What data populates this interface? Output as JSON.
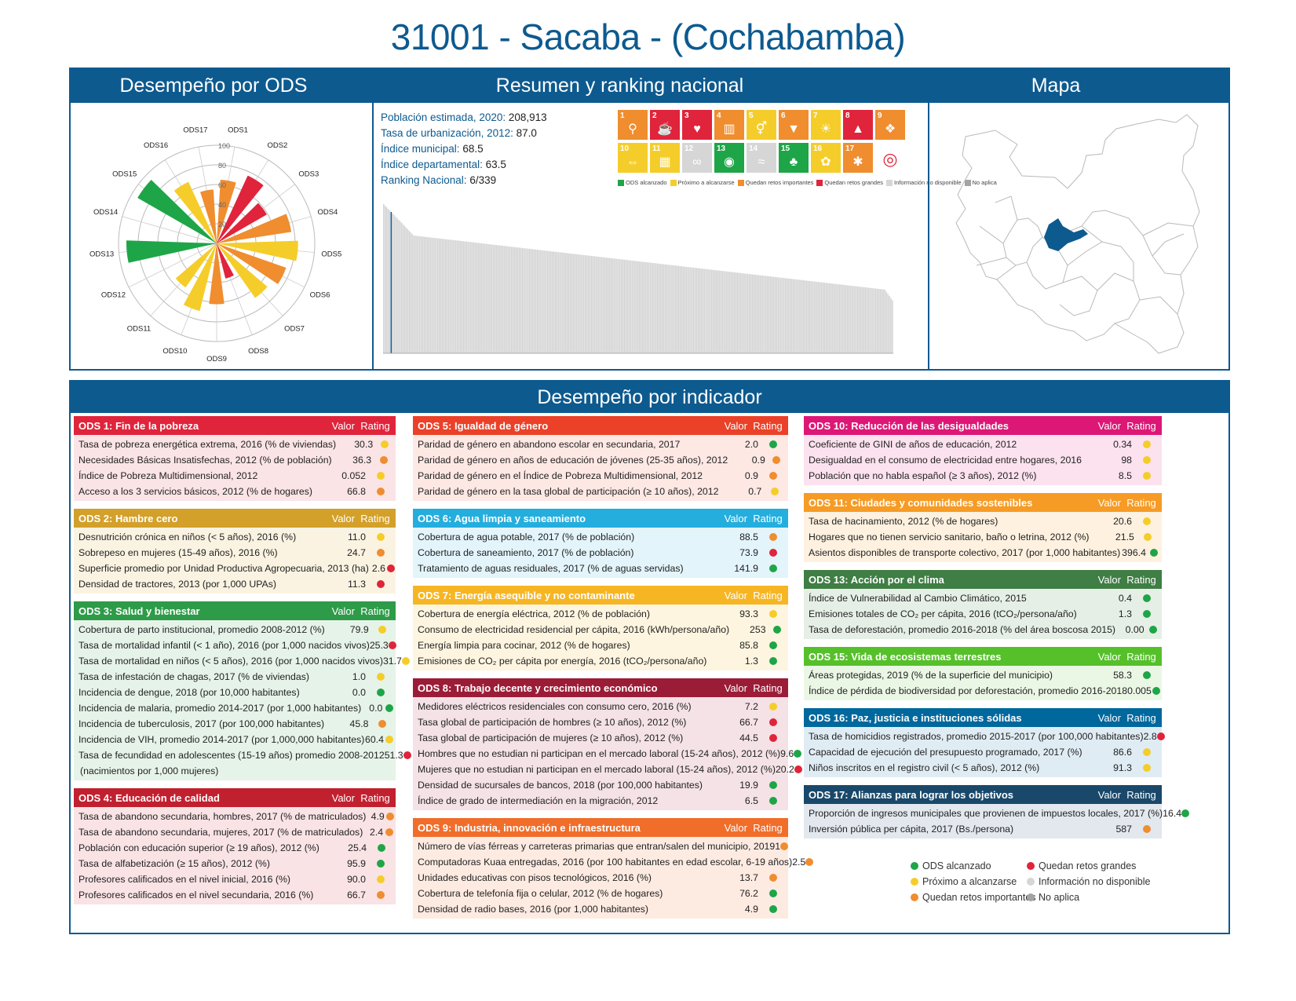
{
  "title": "31001 - Sacaba - (Cochabamba)",
  "top_headers": {
    "performance": "Desempeño por ODS",
    "summary": "Resumen y ranking nacional",
    "map": "Mapa"
  },
  "bottom_header": "Desempeño por indicador",
  "colors": {
    "brand": "#0d5a8f",
    "green": "#1ea548",
    "yellow": "#f5cd2a",
    "orange": "#ef8d2f",
    "red": "#e0243b",
    "lightgray": "#d6d6d6",
    "gray": "#a3a3a3"
  },
  "summary": {
    "rows": [
      {
        "label": "Población estimada, 2020:",
        "value": "208,913"
      },
      {
        "label": "Tasa de urbanización, 2012:",
        "value": "87.0"
      },
      {
        "label": "Índice municipal:",
        "value": "68.5"
      },
      {
        "label": "Índice departamental:",
        "value": "63.5"
      },
      {
        "label": "Ranking Nacional:",
        "value": "6/339"
      }
    ],
    "legend": [
      {
        "label": "ODS alcanzado",
        "color": "#1ea548"
      },
      {
        "label": "Próximo a alcanzarse",
        "color": "#f5cd2a"
      },
      {
        "label": "Quedan retos importantes",
        "color": "#ef8d2f"
      },
      {
        "label": "Quedan retos grandes",
        "color": "#e0243b"
      },
      {
        "label": "Información no disponible",
        "color": "#d6d6d6"
      },
      {
        "label": "No aplica",
        "color": "#a3a3a3"
      }
    ],
    "sdg_tiles": [
      {
        "num": "1",
        "color": "#ef8d2f",
        "glyph": "⚲"
      },
      {
        "num": "2",
        "color": "#e0243b",
        "glyph": "☕"
      },
      {
        "num": "3",
        "color": "#e0243b",
        "glyph": "♥"
      },
      {
        "num": "4",
        "color": "#ef8d2f",
        "glyph": "▥"
      },
      {
        "num": "5",
        "color": "#f5cd2a",
        "glyph": "⚥"
      },
      {
        "num": "6",
        "color": "#ef8d2f",
        "glyph": "▼"
      },
      {
        "num": "7",
        "color": "#f5cd2a",
        "glyph": "☀"
      },
      {
        "num": "8",
        "color": "#e0243b",
        "glyph": "▲"
      },
      {
        "num": "9",
        "color": "#ef8d2f",
        "glyph": "❖"
      },
      {
        "num": "10",
        "color": "#f5cd2a",
        "glyph": "⇔"
      },
      {
        "num": "11",
        "color": "#f5cd2a",
        "glyph": "▦"
      },
      {
        "num": "12",
        "color": "#d6d6d6",
        "glyph": "∞"
      },
      {
        "num": "13",
        "color": "#1ea548",
        "glyph": "◉"
      },
      {
        "num": "14",
        "color": "#d6d6d6",
        "glyph": "≈"
      },
      {
        "num": "15",
        "color": "#1ea548",
        "glyph": "♣"
      },
      {
        "num": "16",
        "color": "#f5cd2a",
        "glyph": "✿"
      },
      {
        "num": "17",
        "color": "#ef8d2f",
        "glyph": "✱"
      },
      {
        "num": "",
        "color": "#ffffff",
        "glyph": "◎"
      }
    ],
    "ranking_bar_values_note": "",
    "ranking_highlight_index": 5
  },
  "chart_data": [
    {
      "type": "polar-bar",
      "title": "",
      "categories": [
        "ODS1",
        "ODS2",
        "ODS3",
        "ODS4",
        "ODS5",
        "ODS6",
        "ODS7",
        "ODS8",
        "ODS9",
        "ODS10",
        "ODS11",
        "ODS12",
        "ODS13",
        "ODS15",
        "ODS16",
        "ODS17"
      ],
      "values": [
        65,
        76,
        59,
        77,
        83,
        75,
        68,
        37,
        62,
        71,
        55,
        0,
        92,
        93,
        69,
        55
      ],
      "colors": [
        "#ef8d2f",
        "#e0243b",
        "#e0243b",
        "#ef8d2f",
        "#f5cd2a",
        "#ef8d2f",
        "#f5cd2a",
        "#e0243b",
        "#ef8d2f",
        "#f5cd2a",
        "#f5cd2a",
        "#d6d6d6",
        "#1ea548",
        "#1ea548",
        "#f5cd2a",
        "#ef8d2f"
      ],
      "radial_ticks": [
        "20",
        "40",
        "60",
        "80",
        "100"
      ],
      "rlim": [
        0,
        100
      ]
    },
    {
      "type": "bar",
      "title": "",
      "count": 339,
      "highlight_rank": 6
    }
  ],
  "sections": {
    "col1": [
      {
        "title": "ODS 1: Fin de la pobreza",
        "color": "#e0243b",
        "bg": "#fbe4e6",
        "items": [
          {
            "name": "Tasa de pobreza energética extrema, 2016 (% de viviendas)",
            "value": "30.3",
            "rating": "#f5cd2a"
          },
          {
            "name": "Necesidades Básicas Insatisfechas, 2012 (% de población)",
            "value": "36.3",
            "rating": "#ef8d2f"
          },
          {
            "name": "Índice de Pobreza Multidimensional, 2012",
            "value": "0.052",
            "rating": "#f5cd2a"
          },
          {
            "name": "Acceso a los 3 servicios básicos, 2012 (% de hogares)",
            "value": "66.8",
            "rating": "#ef8d2f"
          }
        ]
      },
      {
        "title": "ODS 2: Hambre cero",
        "color": "#d3a029",
        "bg": "#fbf3e2",
        "items": [
          {
            "name": "Desnutrición crónica en niños (< 5 años), 2016 (%)",
            "value": "11.0",
            "rating": "#f5cd2a"
          },
          {
            "name": "Sobrepeso en mujeres (15-49 años), 2016 (%)",
            "value": "24.7",
            "rating": "#ef8d2f"
          },
          {
            "name": "Superficie promedio por Unidad Productiva Agropecuaria, 2013 (ha)",
            "value": "2.6",
            "rating": "#e0243b"
          },
          {
            "name": "Densidad de tractores, 2013 (por 1,000 UPAs)",
            "value": "11.3",
            "rating": "#e0243b"
          }
        ]
      },
      {
        "title": "ODS 3: Salud y bienestar",
        "color": "#2e9b48",
        "bg": "#e6f3e9",
        "items": [
          {
            "name": "Cobertura de parto institucional, promedio 2008-2012 (%)",
            "value": "79.9",
            "rating": "#f5cd2a"
          },
          {
            "name": "Tasa de mortalidad infantil (< 1 año), 2016 (por 1,000 nacidos vivos)",
            "value": "25.3",
            "rating": "#e0243b"
          },
          {
            "name": "Tasa de mortalidad en niños (< 5 años), 2016 (por 1,000 nacidos vivos)",
            "value": "31.7",
            "rating": "#f5cd2a"
          },
          {
            "name": "Tasa de infestación de chagas, 2017 (% de viviendas)",
            "value": "1.0",
            "rating": "#f5cd2a"
          },
          {
            "name": "Incidencia de dengue, 2018 (por 10,000 habitantes)",
            "value": "0.0",
            "rating": "#1ea548"
          },
          {
            "name": "Incidencia de malaria, promedio 2014-2017 (por 1,000 habitantes)",
            "value": "0.0",
            "rating": "#1ea548"
          },
          {
            "name": "Incidencia de tuberculosis, 2017 (por 100,000 habitantes)",
            "value": "45.8",
            "rating": "#ef8d2f"
          },
          {
            "name": "Incidencia de VIH, promedio 2014-2017 (por 1,000,000 habitantes)",
            "value": "60.4",
            "rating": "#f5cd2a"
          },
          {
            "name": "Tasa de fecundidad en adolescentes (15-19 años) promedio 2008-2012",
            "value": "51.3",
            "rating": "#e0243b"
          },
          {
            "name": "(nacimientos por 1,000 mujeres)",
            "value": "",
            "rating": ""
          }
        ]
      },
      {
        "title": "ODS 4: Educación de calidad",
        "color": "#c1202f",
        "bg": "#f9e3e5",
        "items": [
          {
            "name": "Tasa de abandono secundaria, hombres, 2017 (% de matriculados)",
            "value": "4.9",
            "rating": "#ef8d2f"
          },
          {
            "name": "Tasa de abandono secundaria, mujeres, 2017 (% de matriculados)",
            "value": "2.4",
            "rating": "#ef8d2f"
          },
          {
            "name": "Población con educación superior (≥ 19 años), 2012 (%)",
            "value": "25.4",
            "rating": "#1ea548"
          },
          {
            "name": "Tasa de alfabetización (≥ 15 años), 2012 (%)",
            "value": "95.9",
            "rating": "#1ea548"
          },
          {
            "name": "Profesores calificados en el nivel inicial, 2016 (%)",
            "value": "90.0",
            "rating": "#f5cd2a"
          },
          {
            "name": "Profesores calificados en el nivel secundaria, 2016 (%)",
            "value": "66.7",
            "rating": "#ef8d2f"
          }
        ]
      }
    ],
    "col2": [
      {
        "title": "ODS 5: Igualdad de género",
        "color": "#ea4128",
        "bg": "#fde8e4",
        "items": [
          {
            "name": "Paridad de género en abandono escolar en secundaria, 2017",
            "value": "2.0",
            "rating": "#1ea548"
          },
          {
            "name": "Paridad de género en años de educación de jóvenes (25-35 años), 2012",
            "value": "0.9",
            "rating": "#ef8d2f"
          },
          {
            "name": "Paridad de género en el Índice de Pobreza Multidimensional, 2012",
            "value": "0.9",
            "rating": "#ef8d2f"
          },
          {
            "name": "Paridad de género en la tasa global de participación (≥ 10 años), 2012",
            "value": "0.7",
            "rating": "#f5cd2a"
          }
        ]
      },
      {
        "title": "ODS 6: Agua limpia y saneamiento",
        "color": "#24aede",
        "bg": "#e3f4fb",
        "items": [
          {
            "name": "Cobertura de agua potable, 2017 (% de población)",
            "value": "88.5",
            "rating": "#ef8d2f"
          },
          {
            "name": "Cobertura de saneamiento, 2017 (% de población)",
            "value": "73.9",
            "rating": "#e0243b"
          },
          {
            "name": "Tratamiento de aguas residuales, 2017 (% de aguas servidas)",
            "value": "141.9",
            "rating": "#1ea548"
          }
        ]
      },
      {
        "title": "ODS 7: Energía asequible y no contaminante",
        "color": "#f6b624",
        "bg": "#fef5e0",
        "items": [
          {
            "name": "Cobertura de energía eléctrica, 2012 (% de población)",
            "value": "93.3",
            "rating": "#f5cd2a"
          },
          {
            "name": "Consumo de electricidad residencial per cápita, 2016 (kWh/persona/año)",
            "value": "253",
            "rating": "#1ea548"
          },
          {
            "name": "Energía limpia para cocinar, 2012 (% de hogares)",
            "value": "85.8",
            "rating": "#1ea548"
          },
          {
            "name": "Emisiones de CO₂ per cápita por energía, 2016 (tCO₂/persona/año)",
            "value": "1.3",
            "rating": "#1ea548"
          }
        ]
      },
      {
        "title": "ODS 8: Trabajo decente y crecimiento económico",
        "color": "#9b1c37",
        "bg": "#f4e2e6",
        "items": [
          {
            "name": "Medidores eléctricos residenciales con consumo cero, 2016 (%)",
            "value": "7.2",
            "rating": "#f5cd2a"
          },
          {
            "name": "Tasa global de participación de hombres (≥ 10 años), 2012 (%)",
            "value": "66.7",
            "rating": "#e0243b"
          },
          {
            "name": "Tasa global de participación de mujeres (≥ 10 años), 2012 (%)",
            "value": "44.5",
            "rating": "#e0243b"
          },
          {
            "name": "Hombres que no estudian ni participan en el mercado laboral (15-24 años), 2012 (%)",
            "value": "9.6",
            "rating": "#1ea548"
          },
          {
            "name": "Mujeres que no estudian ni participan en el mercado laboral (15-24 años), 2012 (%)",
            "value": "20.2",
            "rating": "#e0243b"
          },
          {
            "name": "Densidad de sucursales de bancos, 2018 (por 100,000 habitantes)",
            "value": "19.9",
            "rating": "#1ea548"
          },
          {
            "name": "Índice de grado de intermediación en la migración, 2012",
            "value": "6.5",
            "rating": "#1ea548"
          }
        ]
      },
      {
        "title": "ODS 9: Industria, innovación e infraestructura",
        "color": "#f06d2a",
        "bg": "#fdebe2",
        "items": [
          {
            "name": "Número de vías férreas y carreteras primarias que entran/salen del municipio, 2019",
            "value": "1",
            "rating": "#ef8d2f"
          },
          {
            "name": "Computadoras Kuaa entregadas, 2016 (por 100 habitantes en edad escolar, 6-19 años)",
            "value": "2.5",
            "rating": "#ef8d2f"
          },
          {
            "name": "Unidades educativas con pisos tecnológicos, 2016 (%)",
            "value": "13.7",
            "rating": "#ef8d2f"
          },
          {
            "name": "Cobertura de telefonía fija o celular, 2012 (% de hogares)",
            "value": "76.2",
            "rating": "#1ea548"
          },
          {
            "name": "Densidad de radio bases, 2016 (por 1,000 habitantes)",
            "value": "4.9",
            "rating": "#1ea548"
          }
        ]
      }
    ],
    "col3": [
      {
        "title": "ODS 10: Reducción de las desigualdades",
        "color": "#dd1776",
        "bg": "#fbe2ee",
        "items": [
          {
            "name": "Coeficiente de GINI de años de educación, 2012",
            "value": "0.34",
            "rating": "#f5cd2a"
          },
          {
            "name": "Desigualdad en el consumo de electricidad entre hogares, 2016",
            "value": "98",
            "rating": "#f5cd2a"
          },
          {
            "name": "Población que no habla español (≥ 3 años), 2012 (%)",
            "value": "8.5",
            "rating": "#f5cd2a"
          }
        ]
      },
      {
        "title": "ODS 11: Ciudades y comunidades sostenibles",
        "color": "#f69b25",
        "bg": "#fef1e0",
        "items": [
          {
            "name": "Tasa de hacinamiento, 2012 (% de hogares)",
            "value": "20.6",
            "rating": "#f5cd2a"
          },
          {
            "name": "Hogares que no tienen servicio sanitario, baño o letrina, 2012 (%)",
            "value": "21.5",
            "rating": "#f5cd2a"
          },
          {
            "name": "Asientos disponibles de transporte colectivo, 2017 (por 1,000 habitantes)",
            "value": "396.4",
            "rating": "#1ea548"
          }
        ]
      },
      {
        "title": "ODS 13: Acción por el clima",
        "color": "#3f7e44",
        "bg": "#e6efe6",
        "items": [
          {
            "name": "Índice de Vulnerabilidad al Cambio Climático, 2015",
            "value": "0.4",
            "rating": "#1ea548"
          },
          {
            "name": "Emisiones totales de CO₂ per cápita, 2016 (tCO₂/persona/año)",
            "value": "1.3",
            "rating": "#1ea548"
          },
          {
            "name": "Tasa de deforestación, promedio 2016-2018 (% del área boscosa 2015)",
            "value": "0.00",
            "rating": "#1ea548"
          }
        ]
      },
      {
        "title": "ODS 15: Vida de ecosistemas terrestres",
        "color": "#56c02b",
        "bg": "#ebf7e5",
        "items": [
          {
            "name": "Áreas protegidas, 2019 (% de la superficie del municipio)",
            "value": "58.3",
            "rating": "#1ea548"
          },
          {
            "name": "Índice de pérdida de biodiversidad por deforestación, promedio 2016-2018",
            "value": "0.005",
            "rating": "#1ea548"
          }
        ]
      },
      {
        "title": "ODS 16: Paz, justicia e instituciones sólidas",
        "color": "#00689d",
        "bg": "#e0ecf3",
        "items": [
          {
            "name": "Tasa de homicidios registrados, promedio 2015-2017 (por 100,000 habitantes)",
            "value": "2.8",
            "rating": "#e0243b"
          },
          {
            "name": "Capacidad de ejecución del presupuesto programado, 2017 (%)",
            "value": "86.6",
            "rating": "#f5cd2a"
          },
          {
            "name": "Niños inscritos en el registro civil (< 5 años), 2012 (%)",
            "value": "91.3",
            "rating": "#f5cd2a"
          }
        ]
      },
      {
        "title": "ODS 17: Alianzas para lograr los objetivos",
        "color": "#19486a",
        "bg": "#e2e8ee",
        "items": [
          {
            "name": "Proporción de ingresos municipales que provienen de impuestos locales, 2017 (%)",
            "value": "16.4",
            "rating": "#1ea548"
          },
          {
            "name": "Inversión pública per cápita, 2017 (Bs./persona)",
            "value": "587",
            "rating": "#ef8d2f"
          }
        ]
      }
    ]
  },
  "col_headers": {
    "value": "Valor",
    "rating": "Rating"
  },
  "bottom_legend": [
    {
      "label": "ODS alcanzado",
      "color": "#1ea548"
    },
    {
      "label": "Próximo a alcanzarse",
      "color": "#f5cd2a"
    },
    {
      "label": "Quedan retos importantes",
      "color": "#ef8d2f"
    },
    {
      "label": "Quedan retos grandes",
      "color": "#e0243b"
    },
    {
      "label": "Información no disponible",
      "color": "#d6d6d6"
    },
    {
      "label": "No aplica",
      "color": "#a3a3a3"
    }
  ]
}
